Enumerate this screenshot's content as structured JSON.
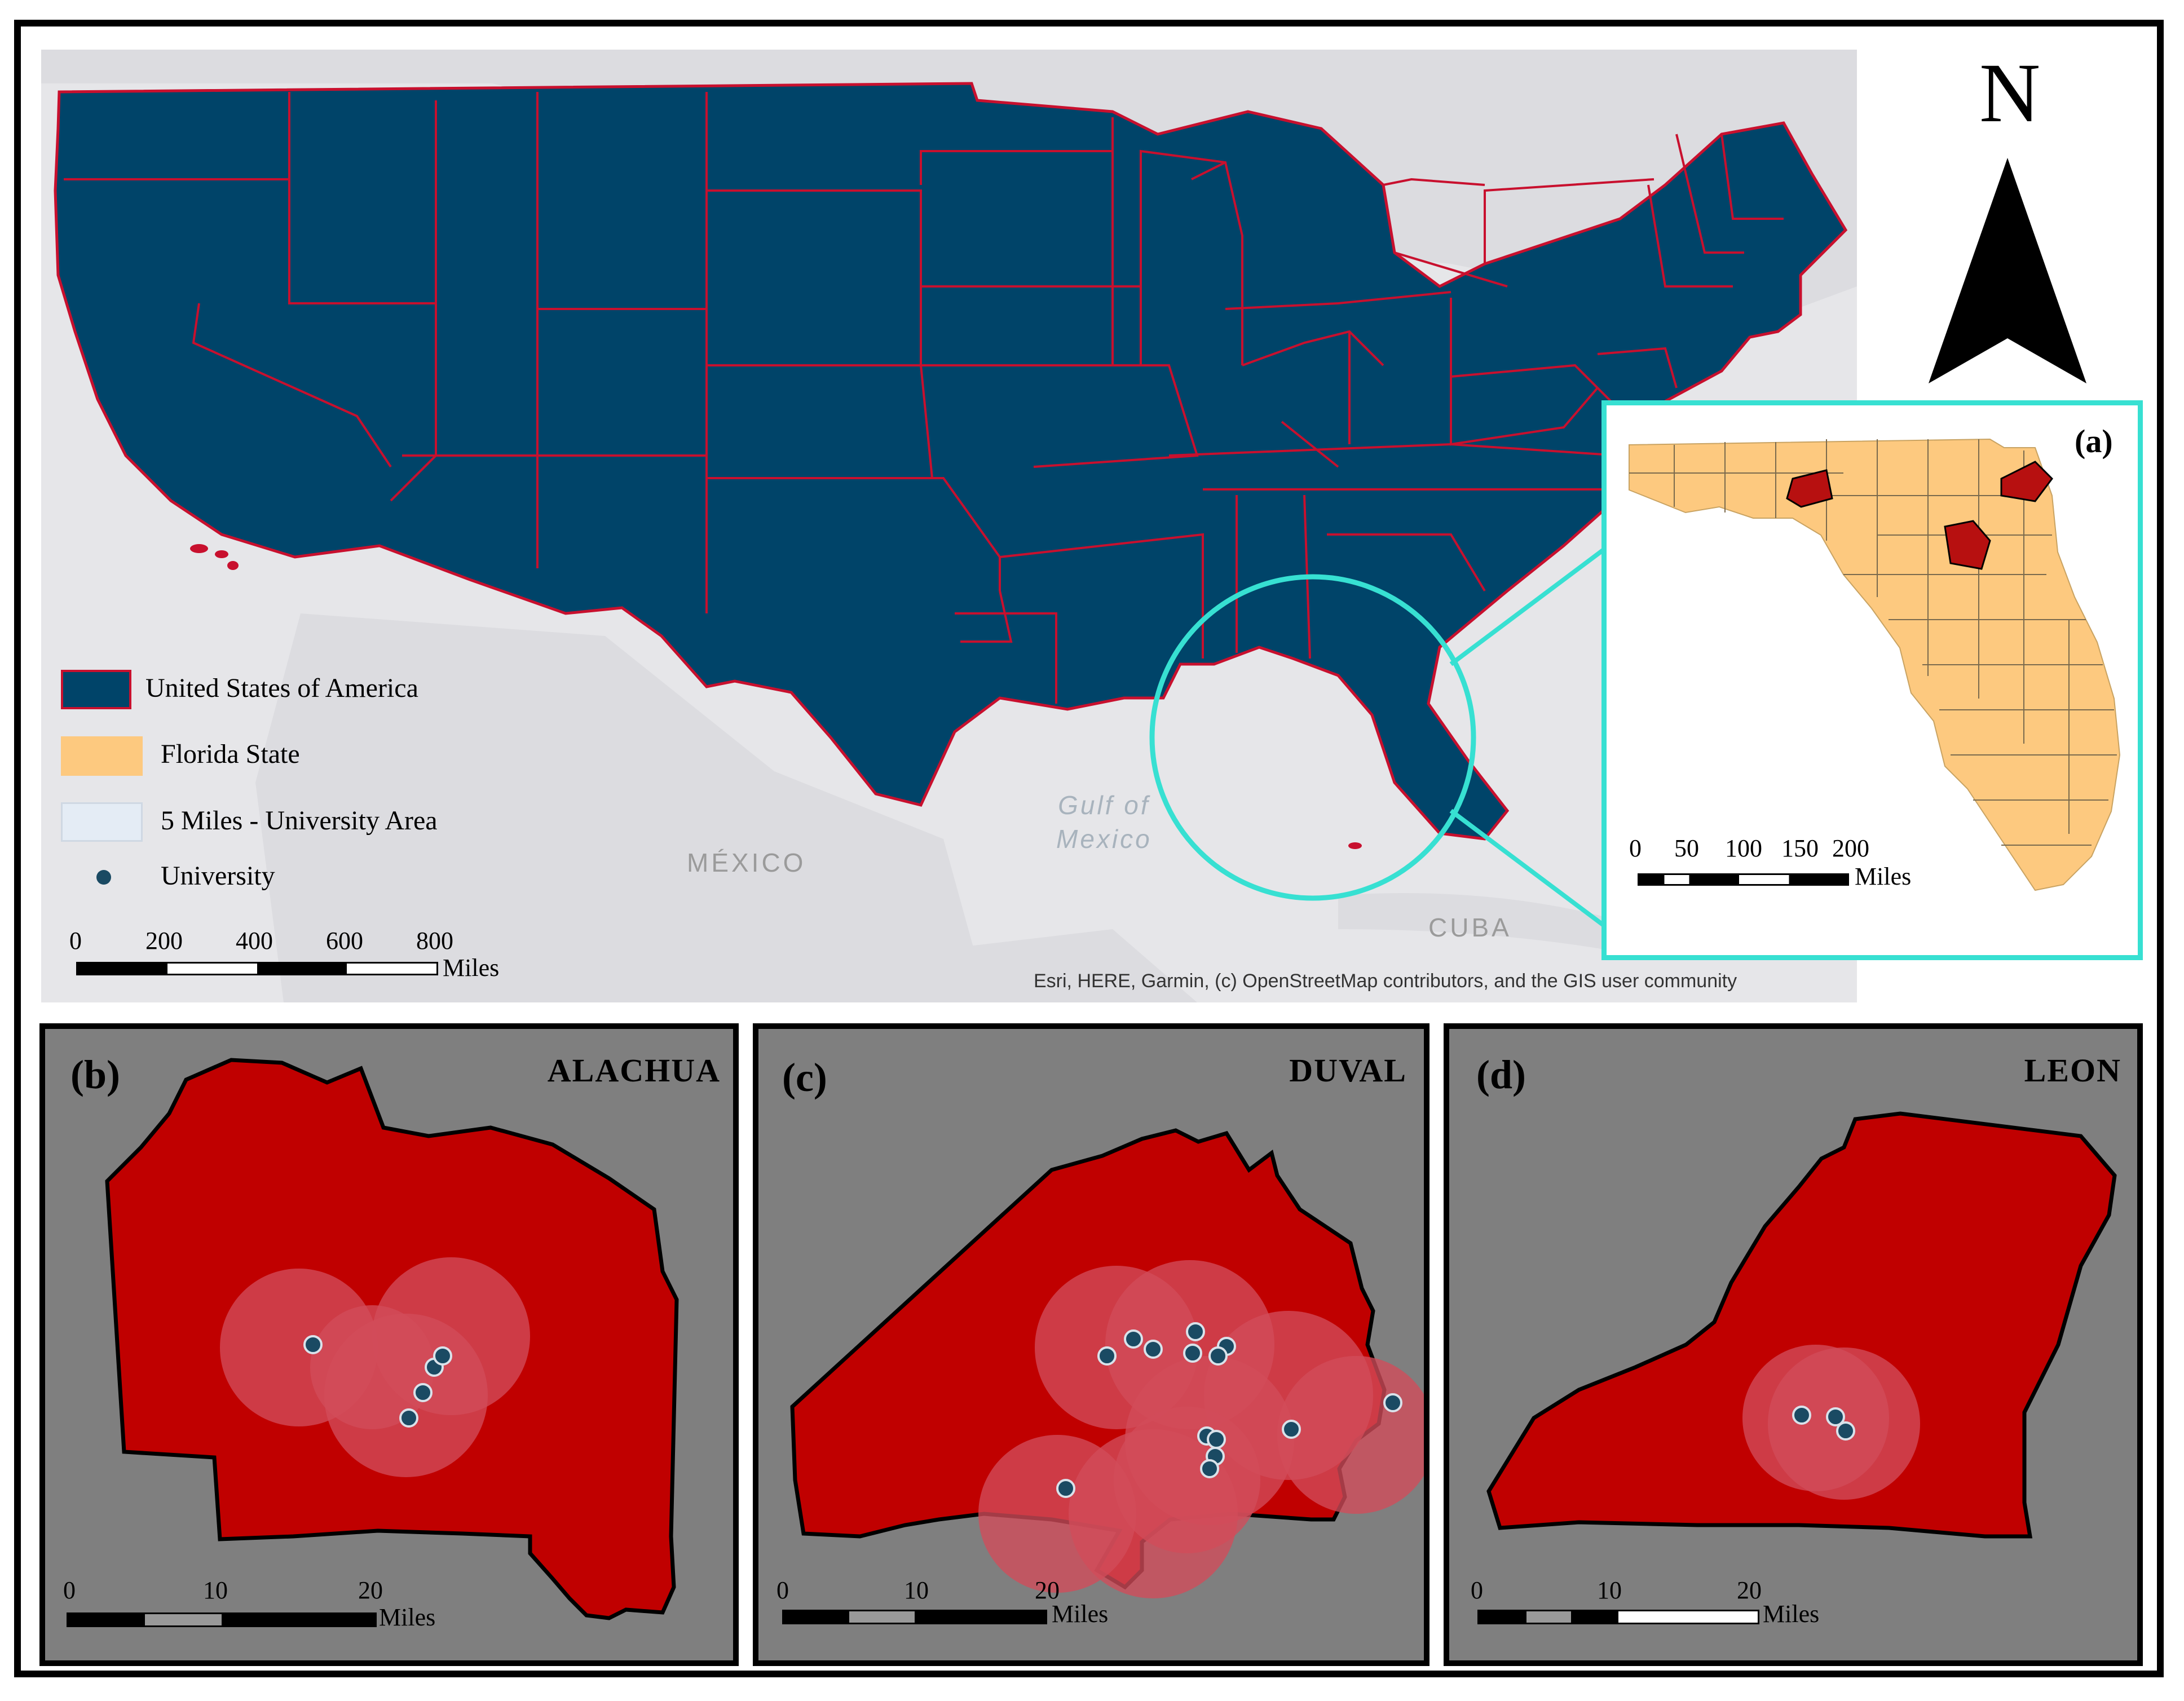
{
  "north_arrow": {
    "label": "N",
    "icon": "north-arrow-icon"
  },
  "main_map": {
    "basemap_labels": {
      "mexico": "MÉXICO",
      "cuba": "CUBA",
      "gulf": "Gulf of Mexico",
      "gulf_line1": "Gulf of",
      "gulf_line2": "Mexico"
    },
    "attribution": "Esri, HERE, Garmin, (c) OpenStreetMap contributors, and the GIS user community",
    "legend": {
      "items": [
        {
          "label": "United States of America",
          "color": "#004469",
          "outline": "#c8102e"
        },
        {
          "label": "Florida State",
          "color": "#fdc97f",
          "outline": "#fdc97f"
        },
        {
          "label": "5 Miles - University Area",
          "color": "#e4ecf5",
          "outline": "#cfd8e3"
        },
        {
          "label": "University",
          "color": "#1a4a63",
          "outline": "#1a4a63"
        }
      ]
    },
    "scale": {
      "ticks": [
        "0",
        "200",
        "400",
        "600",
        "800"
      ],
      "unit": "Miles"
    },
    "colors": {
      "land": "#004469",
      "boundary": "#c8102e",
      "water": "#e6e6e9",
      "highlight": "#37e0d2"
    }
  },
  "inset_a": {
    "label": "(a)",
    "scale": {
      "ticks": [
        "0",
        "50",
        "100",
        "150",
        "200"
      ],
      "unit": "Miles"
    },
    "colors": {
      "florida": "#fdc97f",
      "county_line": "#7a6a4d",
      "study_counties": "#b71010"
    }
  },
  "panels": [
    {
      "label": "(b)",
      "title": "ALACHUA",
      "scale": {
        "ticks": [
          "0",
          "10",
          "20"
        ],
        "unit": "Miles"
      }
    },
    {
      "label": "(c)",
      "title": "DUVAL",
      "scale": {
        "ticks": [
          "0",
          "10",
          "20"
        ],
        "unit": "Miles"
      }
    },
    {
      "label": "(d)",
      "title": "LEON",
      "scale": {
        "ticks": [
          "0",
          "10",
          "20"
        ],
        "unit": "Miles"
      }
    }
  ],
  "panel_colors": {
    "background": "#7f7f7f",
    "county": "#c00000",
    "buffer": "#d24c5a",
    "university": "#1a4a63"
  }
}
